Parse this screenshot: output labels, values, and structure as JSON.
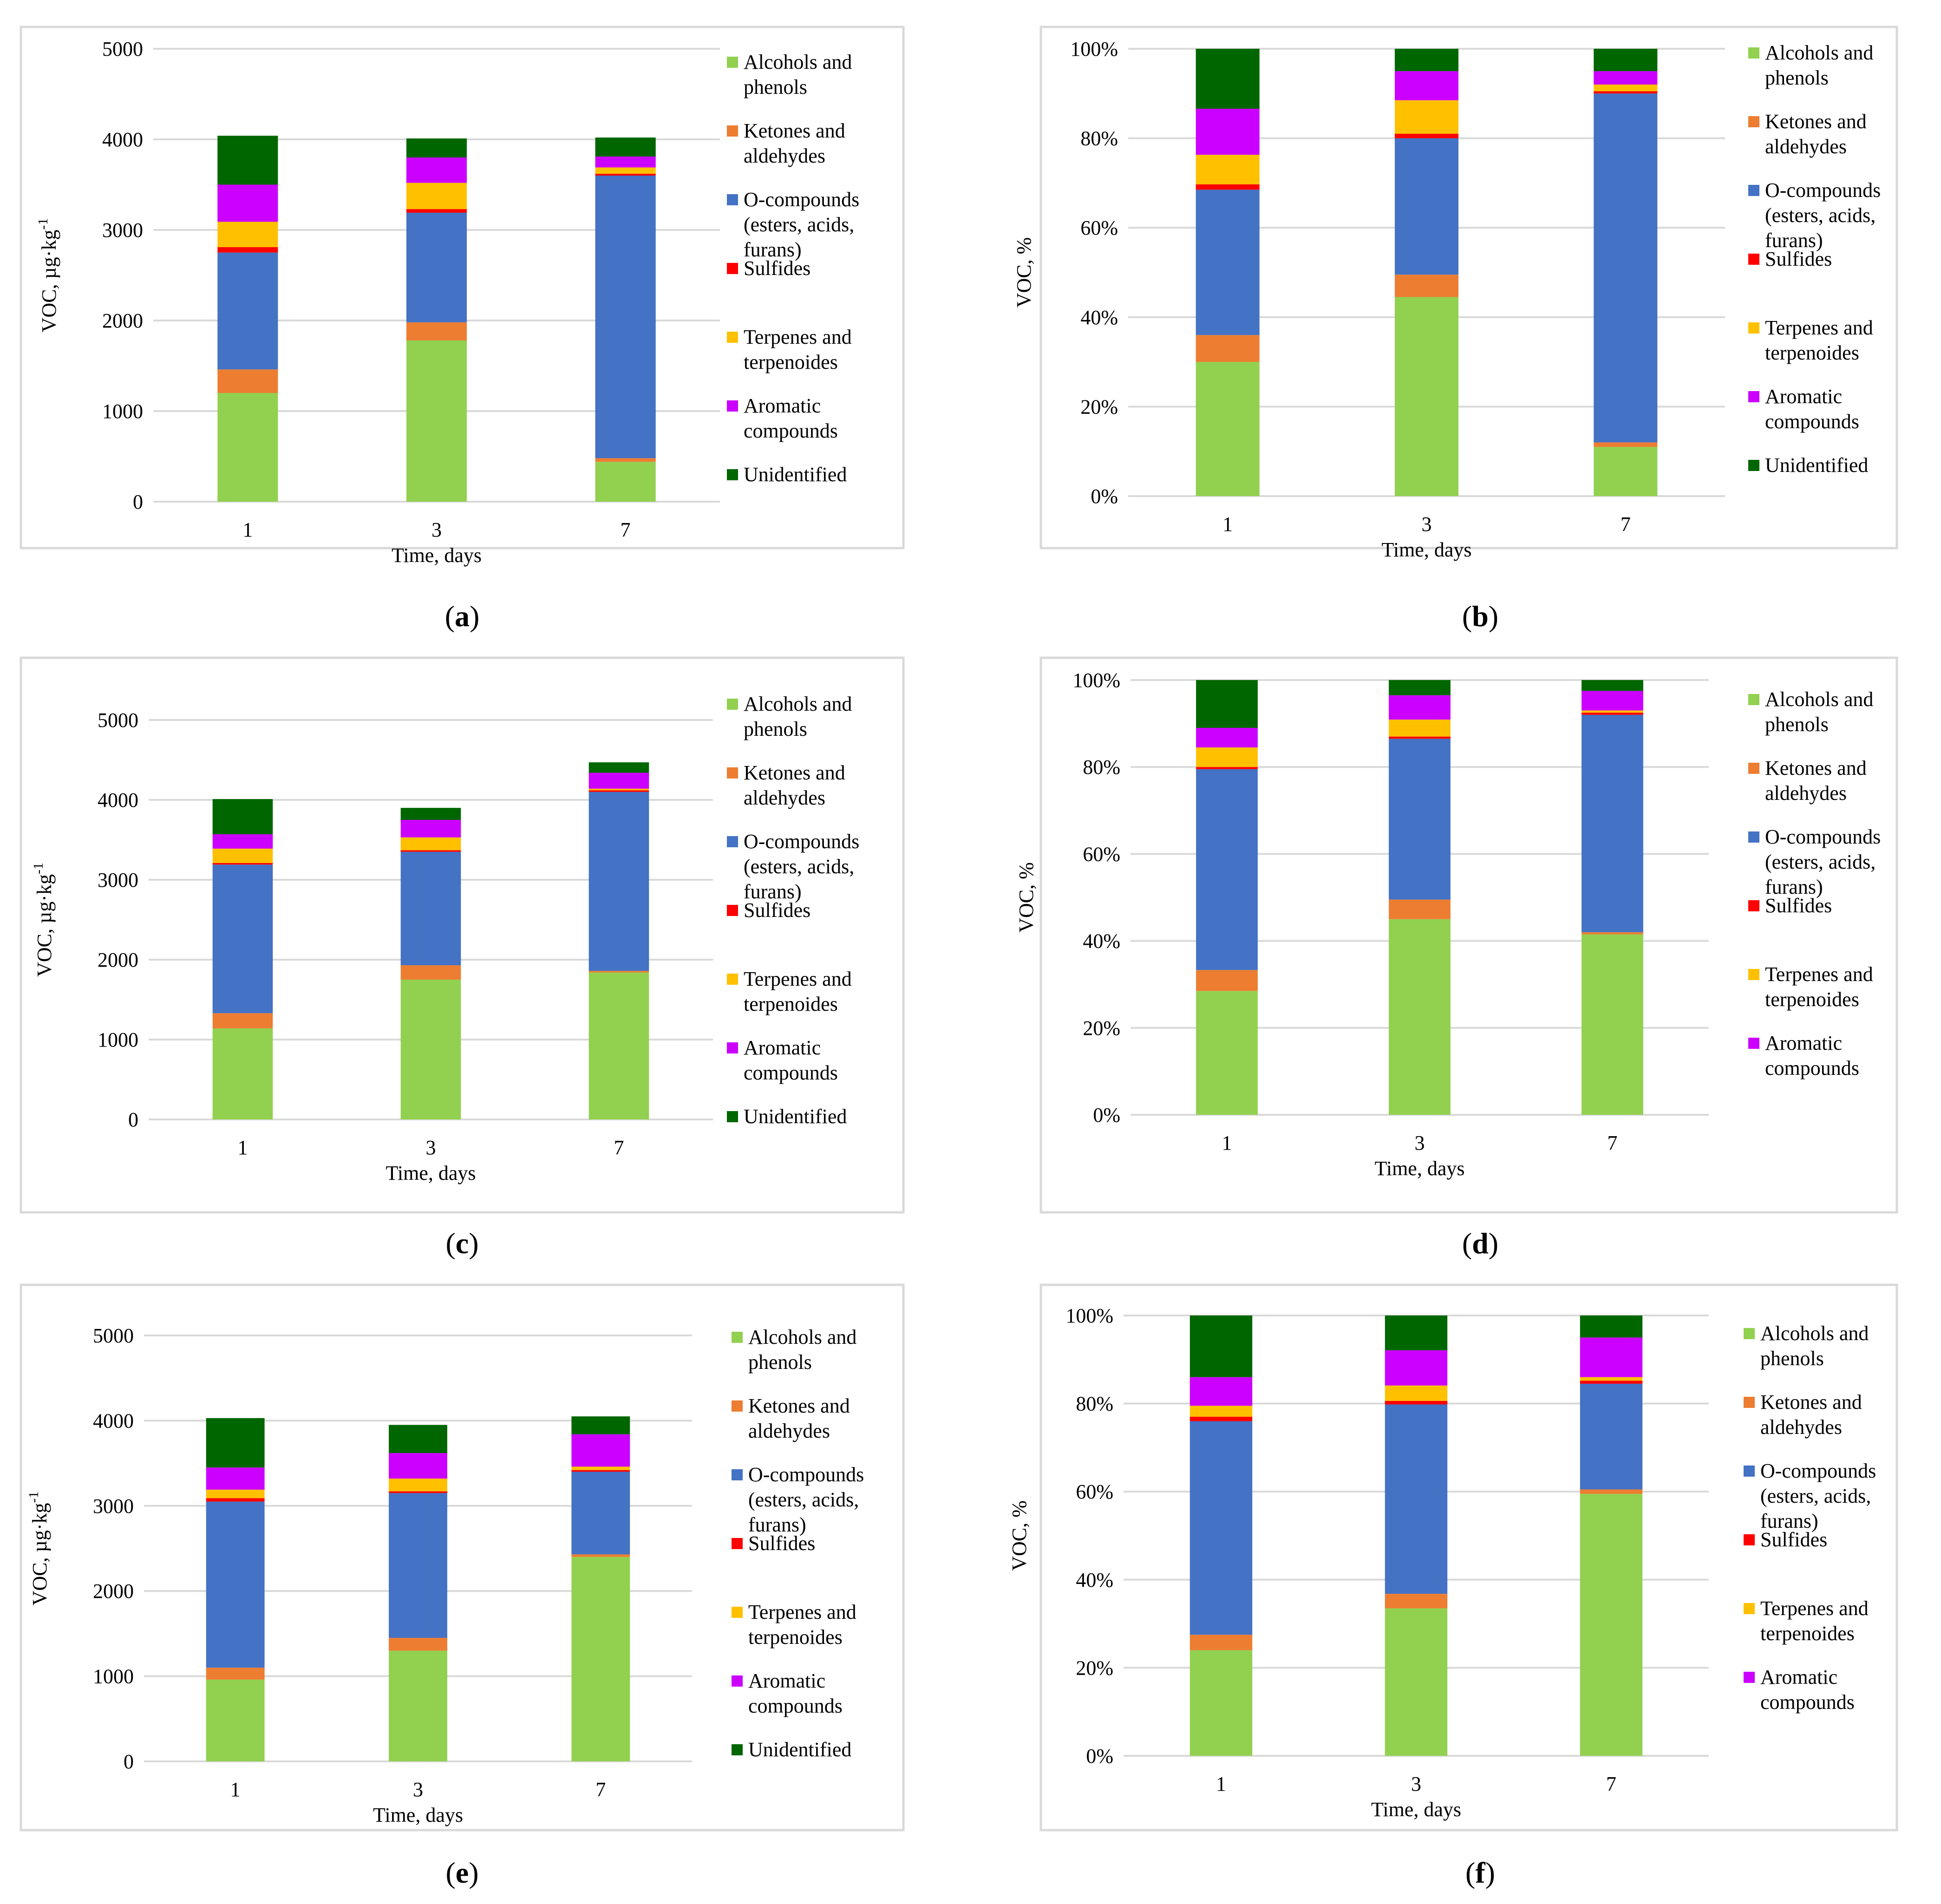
{
  "colors": {
    "Alcohols and phenols": "#92d050",
    "Ketones and aldehydes": "#ed7d31",
    "O-compounds (esters, acids, furans)": "#4472c4",
    "Sulfides": "#ff0000",
    "Terpenes and terpenoides": "#ffc000",
    "Aromatic compounds": "#cc00ff",
    "Unidentified": "#006600"
  },
  "chart_data": [
    {
      "id": "a",
      "type": "bar",
      "stacked": true,
      "panel_label": "a",
      "xlabel": "Time, days",
      "ylabel": "VOC, µg·kg-1",
      "ylim": [
        0,
        5000
      ],
      "ytick_labels": [
        "0",
        "1000",
        "2000",
        "3000",
        "4000",
        "5000"
      ],
      "categories": [
        "1",
        "3",
        "7"
      ],
      "legend": [
        {
          "lines": [
            "Alcohols and",
            "phenols"
          ]
        },
        {
          "lines": [
            "Ketones and",
            "aldehydes"
          ]
        },
        {
          "lines": [
            "O-compounds",
            "(esters, acids,",
            "furans)"
          ]
        },
        {
          "lines": [
            "Sulfides"
          ]
        },
        {
          "lines": [
            "Terpenes and",
            "terpenoides"
          ]
        },
        {
          "lines": [
            "Aromatic",
            "compounds"
          ]
        },
        {
          "lines": [
            "Unidentified"
          ]
        }
      ],
      "series": [
        {
          "name": "Alcohols and phenols",
          "values": [
            1200,
            1780,
            440
          ]
        },
        {
          "name": "Ketones and aldehydes",
          "values": [
            260,
            200,
            40
          ]
        },
        {
          "name": "O-compounds (esters, acids, furans)",
          "values": [
            1290,
            1210,
            3120
          ]
        },
        {
          "name": "Sulfides",
          "values": [
            60,
            40,
            20
          ]
        },
        {
          "name": "Terpenes and terpenoides",
          "values": [
            280,
            290,
            70
          ]
        },
        {
          "name": "Aromatic compounds",
          "values": [
            410,
            280,
            120
          ]
        },
        {
          "name": "Unidentified",
          "values": [
            540,
            210,
            210
          ]
        }
      ]
    },
    {
      "id": "b",
      "type": "bar",
      "stacked": true,
      "percent": true,
      "panel_label": "b",
      "xlabel": "Time, days",
      "ylabel": "VOC, %",
      "ylim": [
        0,
        100
      ],
      "ytick_labels": [
        "0%",
        "20%",
        "40%",
        "60%",
        "80%",
        "100%"
      ],
      "categories": [
        "1",
        "3",
        "7"
      ],
      "legend": [
        {
          "lines": [
            "Alcohols and",
            "phenols"
          ]
        },
        {
          "lines": [
            "Ketones and",
            "aldehydes"
          ]
        },
        {
          "lines": [
            "O-compounds",
            "(esters, acids,",
            "furans)"
          ]
        },
        {
          "lines": [
            "Sulfides"
          ]
        },
        {
          "lines": [
            "Terpenes and",
            "terpenoides"
          ]
        },
        {
          "lines": [
            "Aromatic",
            "compounds"
          ]
        },
        {
          "lines": [
            "Unidentified"
          ]
        }
      ],
      "series": [
        {
          "name": "Alcohols and phenols",
          "values": [
            30,
            44.5,
            11
          ]
        },
        {
          "name": "Ketones and aldehydes",
          "values": [
            6,
            5,
            1
          ]
        },
        {
          "name": "O-compounds (esters, acids, furans)",
          "values": [
            32.5,
            30.5,
            78
          ]
        },
        {
          "name": "Sulfides",
          "values": [
            1.2,
            1,
            0.5
          ]
        },
        {
          "name": "Terpenes and terpenoides",
          "values": [
            6.6,
            7.5,
            1.5
          ]
        },
        {
          "name": "Aromatic compounds",
          "values": [
            10.3,
            6.5,
            3
          ]
        },
        {
          "name": "Unidentified",
          "values": [
            13.4,
            5,
            5
          ]
        }
      ]
    },
    {
      "id": "c",
      "type": "bar",
      "stacked": true,
      "panel_label": "c",
      "xlabel": "Time, days",
      "ylabel": "VOC, µg·kg-1",
      "ylim": [
        0,
        5000
      ],
      "ytick_labels": [
        "0",
        "1000",
        "2000",
        "3000",
        "4000",
        "5000"
      ],
      "categories": [
        "1",
        "3",
        "7"
      ],
      "legend": [
        {
          "lines": [
            "Alcohols and",
            "phenols"
          ]
        },
        {
          "lines": [
            "Ketones and",
            "aldehydes"
          ]
        },
        {
          "lines": [
            "O-compounds",
            "(esters, acids,",
            "furans)"
          ]
        },
        {
          "lines": [
            "Sulfides"
          ]
        },
        {
          "lines": [
            "Terpenes and",
            "terpenoides"
          ]
        },
        {
          "lines": [
            "Aromatic",
            "compounds"
          ]
        },
        {
          "lines": [
            "Unidentified"
          ]
        }
      ],
      "series": [
        {
          "name": "Alcohols and phenols",
          "values": [
            1140,
            1750,
            1840
          ]
        },
        {
          "name": "Ketones and aldehydes",
          "values": [
            190,
            180,
            20
          ]
        },
        {
          "name": "O-compounds (esters, acids, furans)",
          "values": [
            1860,
            1420,
            2240
          ]
        },
        {
          "name": "Sulfides",
          "values": [
            20,
            20,
            20
          ]
        },
        {
          "name": "Terpenes and terpenoides",
          "values": [
            180,
            160,
            20
          ]
        },
        {
          "name": "Aromatic compounds",
          "values": [
            180,
            220,
            200
          ]
        },
        {
          "name": "Unidentified",
          "values": [
            440,
            150,
            130
          ]
        }
      ]
    },
    {
      "id": "d",
      "type": "bar",
      "stacked": true,
      "percent": true,
      "panel_label": "d",
      "xlabel": "Time, days",
      "ylabel": "VOC, %",
      "ylim": [
        0,
        100
      ],
      "ytick_labels": [
        "0%",
        "20%",
        "40%",
        "60%",
        "80%",
        "100%"
      ],
      "categories": [
        "1",
        "3",
        "7"
      ],
      "legend": [
        {
          "lines": [
            "Alcohols and",
            "phenols"
          ]
        },
        {
          "lines": [
            "Ketones and",
            "aldehydes"
          ]
        },
        {
          "lines": [
            "O-compounds",
            "(esters, acids,",
            "furans)"
          ]
        },
        {
          "lines": [
            "Sulfides"
          ]
        },
        {
          "lines": [
            "Terpenes and",
            "terpenoides"
          ]
        },
        {
          "lines": [
            "Aromatic",
            "compounds"
          ]
        }
      ],
      "series": [
        {
          "name": "Alcohols and phenols",
          "values": [
            28.5,
            45,
            41.5
          ]
        },
        {
          "name": "Ketones and aldehydes",
          "values": [
            4.8,
            4.5,
            0.5
          ]
        },
        {
          "name": "O-compounds (esters, acids, furans)",
          "values": [
            46.2,
            37,
            50
          ]
        },
        {
          "name": "Sulfides",
          "values": [
            0.5,
            0.5,
            0.5
          ]
        },
        {
          "name": "Terpenes and terpenoides",
          "values": [
            4.5,
            3.9,
            0.5
          ]
        },
        {
          "name": "Aromatic compounds",
          "values": [
            4.5,
            5.6,
            4.5
          ]
        },
        {
          "name": "Unidentified",
          "values": [
            11,
            3.5,
            2.5
          ]
        }
      ]
    },
    {
      "id": "e",
      "type": "bar",
      "stacked": true,
      "panel_label": "e",
      "xlabel": "Time, days",
      "ylabel": "VOC, µg·kg-1",
      "ylim": [
        0,
        5000
      ],
      "ytick_labels": [
        "0",
        "1000",
        "2000",
        "3000",
        "4000",
        "5000"
      ],
      "categories": [
        "1",
        "3",
        "7"
      ],
      "legend": [
        {
          "lines": [
            "Alcohols and",
            "phenols"
          ]
        },
        {
          "lines": [
            "Ketones and",
            "aldehydes"
          ]
        },
        {
          "lines": [
            "O-compounds",
            "(esters, acids,",
            "furans)"
          ]
        },
        {
          "lines": [
            "Sulfides"
          ]
        },
        {
          "lines": [
            "Terpenes and",
            "terpenoides"
          ]
        },
        {
          "lines": [
            "Aromatic",
            "compounds"
          ]
        },
        {
          "lines": [
            "Unidentified"
          ]
        }
      ],
      "series": [
        {
          "name": "Alcohols and phenols",
          "values": [
            960,
            1300,
            2400
          ]
        },
        {
          "name": "Ketones and aldehydes",
          "values": [
            140,
            150,
            30
          ]
        },
        {
          "name": "O-compounds (esters, acids, furans)",
          "values": [
            1950,
            1700,
            970
          ]
        },
        {
          "name": "Sulfides",
          "values": [
            40,
            20,
            20
          ]
        },
        {
          "name": "Terpenes and terpenoides",
          "values": [
            100,
            150,
            40
          ]
        },
        {
          "name": "Aromatic compounds",
          "values": [
            260,
            300,
            380
          ]
        },
        {
          "name": "Unidentified",
          "values": [
            580,
            330,
            210
          ]
        }
      ]
    },
    {
      "id": "f",
      "type": "bar",
      "stacked": true,
      "percent": true,
      "panel_label": "f",
      "xlabel": "Time, days",
      "ylabel": "VOC, %",
      "ylim": [
        0,
        100
      ],
      "ytick_labels": [
        "0%",
        "20%",
        "40%",
        "60%",
        "80%",
        "100%"
      ],
      "categories": [
        "1",
        "3",
        "7"
      ],
      "legend": [
        {
          "lines": [
            "Alcohols and",
            "phenols"
          ]
        },
        {
          "lines": [
            "Ketones and",
            "aldehydes"
          ]
        },
        {
          "lines": [
            "O-compounds",
            "(esters, acids,",
            "furans)"
          ]
        },
        {
          "lines": [
            "Sulfides"
          ]
        },
        {
          "lines": [
            "Terpenes and",
            "terpenoides"
          ]
        },
        {
          "lines": [
            "Aromatic",
            "compounds"
          ]
        }
      ],
      "series": [
        {
          "name": "Alcohols and phenols",
          "values": [
            24,
            33.5,
            59.5
          ]
        },
        {
          "name": "Ketones and aldehydes",
          "values": [
            3.5,
            3.3,
            1
          ]
        },
        {
          "name": "O-compounds (esters, acids, furans)",
          "values": [
            48.5,
            43,
            24
          ]
        },
        {
          "name": "Sulfides",
          "values": [
            1,
            0.8,
            0.7
          ]
        },
        {
          "name": "Terpenes and terpenoides",
          "values": [
            2.5,
            3.5,
            0.8
          ]
        },
        {
          "name": "Aromatic compounds",
          "values": [
            6.5,
            8,
            9
          ]
        },
        {
          "name": "Unidentified",
          "values": [
            14,
            7.9,
            5
          ]
        }
      ]
    }
  ]
}
